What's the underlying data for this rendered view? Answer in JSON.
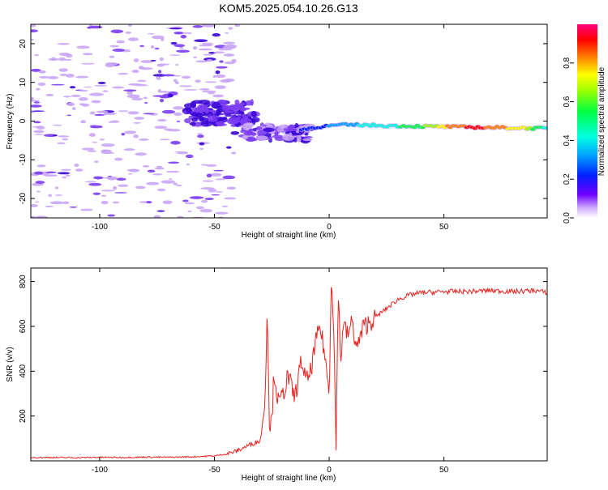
{
  "title": "KOM5.2025.054.10.26.G13",
  "colors": {
    "snr_line": "#e8221f",
    "blob_light": "#c9a6f7",
    "blob_mid": "#7b3cf2",
    "blob_dark": "#3a06d6",
    "colorbar": [
      "#ffffff",
      "#d0b0ff",
      "#7000ff",
      "#0020ff",
      "#00a0ff",
      "#00ffe0",
      "#00ff40",
      "#a0ff00",
      "#ffff00",
      "#ff8000",
      "#ff0000",
      "#ff0080"
    ]
  },
  "chart_data": [
    {
      "type": "heatmap",
      "title": "KOM5.2025.054.10.26.G13",
      "xlabel": "Height of straight line (km)",
      "ylabel": "Frequency (Hz)",
      "xlim": [
        -130,
        95
      ],
      "ylim": [
        -25,
        25
      ],
      "xticks": [
        -100,
        -50,
        0,
        50
      ],
      "yticks": [
        -20,
        -10,
        0,
        10,
        20
      ],
      "colorbar": {
        "label": "Normalized spectral amplitude",
        "range": [
          0,
          1
        ],
        "ticks": [
          "0.0",
          "0.2",
          "0.4",
          "0.6",
          "0.8"
        ]
      },
      "trace": {
        "description_points_x_km": [
          -45,
          -35,
          -25,
          -15,
          -5,
          5,
          15,
          25,
          35,
          45,
          55,
          65,
          75,
          85,
          95
        ],
        "frequency_hz": [
          1.0,
          3.0,
          -3.0,
          -2.5,
          -1.5,
          -1.0,
          -1.0,
          -1.2,
          -1.3,
          -1.4,
          -1.5,
          -1.6,
          -1.7,
          -1.8,
          -1.9
        ],
        "amplitude": [
          0.12,
          0.15,
          0.2,
          0.25,
          0.3,
          0.35,
          0.45,
          0.5,
          0.6,
          0.7,
          0.9,
          0.95,
          0.85,
          0.75,
          0.5
        ]
      }
    },
    {
      "type": "line",
      "xlabel": "Height of straight line (km)",
      "ylabel": "SNR (v/v)",
      "xlim": [
        -130,
        95
      ],
      "ylim": [
        0,
        860
      ],
      "xticks": [
        -100,
        -50,
        0,
        50
      ],
      "yticks": [
        200,
        400,
        600,
        800
      ],
      "series": [
        {
          "x": [
            -130,
            -120,
            -110,
            -100,
            -90,
            -80,
            -70,
            -60,
            -50,
            -45,
            -40,
            -35,
            -30,
            -28,
            -27,
            -26,
            -25,
            -24,
            -23,
            -22,
            -20,
            -18,
            -15,
            -12,
            -10,
            -8,
            -6,
            -4,
            -2,
            0,
            1,
            2,
            3,
            4,
            5,
            6,
            8,
            10,
            12,
            15,
            18,
            20,
            25,
            30,
            35,
            40,
            50,
            60,
            70,
            80,
            90,
            95
          ],
          "y": [
            15,
            15,
            14,
            16,
            15,
            17,
            16,
            18,
            22,
            30,
            45,
            70,
            90,
            250,
            700,
            160,
            180,
            400,
            320,
            250,
            300,
            380,
            280,
            450,
            350,
            400,
            520,
            600,
            480,
            300,
            850,
            600,
            60,
            780,
            420,
            620,
            560,
            620,
            500,
            600,
            620,
            640,
            680,
            720,
            740,
            750,
            755,
            755,
            760,
            755,
            760,
            750
          ]
        }
      ]
    }
  ]
}
